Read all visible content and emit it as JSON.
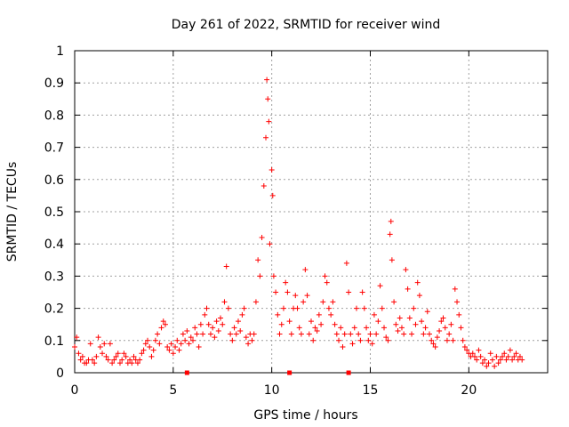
{
  "chart_data": {
    "type": "scatter",
    "title": "Day 261 of 2022, SRMTID for receiver wind",
    "xlabel": "GPS time / hours",
    "ylabel": "SRMTID / TECUs",
    "xlim": [
      0,
      24
    ],
    "ylim": [
      0,
      1
    ],
    "grid": true,
    "marker_color": "#ff0000",
    "x_ticks": [
      0,
      5,
      10,
      15,
      20
    ],
    "x_tick_labels": [
      "0",
      "5",
      "10",
      "15",
      "20"
    ],
    "y_ticks": [
      0,
      0.1,
      0.2,
      0.3,
      0.4,
      0.5,
      0.6,
      0.7,
      0.8,
      0.9,
      1
    ],
    "y_tick_labels": [
      "0",
      "0.1",
      "0.2",
      "0.3",
      "0.4",
      "0.5",
      "0.6",
      "0.7",
      "0.8",
      "0.9",
      "1"
    ],
    "series": [
      {
        "name": "SRMTID",
        "marker": "plus",
        "points": [
          [
            0.0,
            0.08
          ],
          [
            0.1,
            0.11
          ],
          [
            0.2,
            0.06
          ],
          [
            0.3,
            0.04
          ],
          [
            0.4,
            0.05
          ],
          [
            0.5,
            0.03
          ],
          [
            0.6,
            0.03
          ],
          [
            0.7,
            0.04
          ],
          [
            0.8,
            0.09
          ],
          [
            0.9,
            0.04
          ],
          [
            1.0,
            0.03
          ],
          [
            1.1,
            0.05
          ],
          [
            1.2,
            0.11
          ],
          [
            1.3,
            0.08
          ],
          [
            1.4,
            0.06
          ],
          [
            1.5,
            0.09
          ],
          [
            1.6,
            0.05
          ],
          [
            1.7,
            0.04
          ],
          [
            1.8,
            0.09
          ],
          [
            1.9,
            0.03
          ],
          [
            2.0,
            0.04
          ],
          [
            2.1,
            0.05
          ],
          [
            2.2,
            0.06
          ],
          [
            2.3,
            0.03
          ],
          [
            2.4,
            0.04
          ],
          [
            2.5,
            0.06
          ],
          [
            2.6,
            0.05
          ],
          [
            2.7,
            0.03
          ],
          [
            2.8,
            0.04
          ],
          [
            2.9,
            0.03
          ],
          [
            3.0,
            0.05
          ],
          [
            3.1,
            0.04
          ],
          [
            3.2,
            0.03
          ],
          [
            3.3,
            0.04
          ],
          [
            3.4,
            0.06
          ],
          [
            3.5,
            0.07
          ],
          [
            3.6,
            0.09
          ],
          [
            3.7,
            0.1
          ],
          [
            3.8,
            0.08
          ],
          [
            3.9,
            0.05
          ],
          [
            4.0,
            0.07
          ],
          [
            4.1,
            0.1
          ],
          [
            4.2,
            0.12
          ],
          [
            4.3,
            0.09
          ],
          [
            4.4,
            0.14
          ],
          [
            4.5,
            0.16
          ],
          [
            4.6,
            0.15
          ],
          [
            4.7,
            0.08
          ],
          [
            4.8,
            0.07
          ],
          [
            4.9,
            0.09
          ],
          [
            5.0,
            0.06
          ],
          [
            5.1,
            0.08
          ],
          [
            5.2,
            0.1
          ],
          [
            5.3,
            0.07
          ],
          [
            5.4,
            0.09
          ],
          [
            5.5,
            0.12
          ],
          [
            5.6,
            0.1
          ],
          [
            5.7,
            0.13
          ],
          [
            5.8,
            0.09
          ],
          [
            5.9,
            0.11
          ],
          [
            6.0,
            0.1
          ],
          [
            6.1,
            0.14
          ],
          [
            6.2,
            0.12
          ],
          [
            6.3,
            0.08
          ],
          [
            6.4,
            0.15
          ],
          [
            6.5,
            0.12
          ],
          [
            6.6,
            0.18
          ],
          [
            6.7,
            0.2
          ],
          [
            6.8,
            0.15
          ],
          [
            6.9,
            0.12
          ],
          [
            7.0,
            0.14
          ],
          [
            7.1,
            0.11
          ],
          [
            7.2,
            0.16
          ],
          [
            7.3,
            0.13
          ],
          [
            7.4,
            0.17
          ],
          [
            7.5,
            0.15
          ],
          [
            7.6,
            0.22
          ],
          [
            7.7,
            0.33
          ],
          [
            7.8,
            0.2
          ],
          [
            7.9,
            0.12
          ],
          [
            8.0,
            0.1
          ],
          [
            8.1,
            0.14
          ],
          [
            8.2,
            0.12
          ],
          [
            8.3,
            0.16
          ],
          [
            8.4,
            0.13
          ],
          [
            8.5,
            0.18
          ],
          [
            8.6,
            0.2
          ],
          [
            8.7,
            0.11
          ],
          [
            8.8,
            0.09
          ],
          [
            8.9,
            0.12
          ],
          [
            9.0,
            0.1
          ],
          [
            9.1,
            0.12
          ],
          [
            9.2,
            0.22
          ],
          [
            9.3,
            0.35
          ],
          [
            9.4,
            0.3
          ],
          [
            9.5,
            0.42
          ],
          [
            9.6,
            0.58
          ],
          [
            9.7,
            0.73
          ],
          [
            9.75,
            0.91
          ],
          [
            9.8,
            0.85
          ],
          [
            9.85,
            0.78
          ],
          [
            9.9,
            0.4
          ],
          [
            10.0,
            0.63
          ],
          [
            10.05,
            0.55
          ],
          [
            10.1,
            0.3
          ],
          [
            10.2,
            0.25
          ],
          [
            10.3,
            0.18
          ],
          [
            10.4,
            0.12
          ],
          [
            10.5,
            0.15
          ],
          [
            10.6,
            0.2
          ],
          [
            10.7,
            0.28
          ],
          [
            10.8,
            0.25
          ],
          [
            10.9,
            0.16
          ],
          [
            11.0,
            0.12
          ],
          [
            11.1,
            0.2
          ],
          [
            11.2,
            0.24
          ],
          [
            11.3,
            0.2
          ],
          [
            11.4,
            0.14
          ],
          [
            11.5,
            0.12
          ],
          [
            11.6,
            0.22
          ],
          [
            11.7,
            0.32
          ],
          [
            11.8,
            0.24
          ],
          [
            11.9,
            0.12
          ],
          [
            12.0,
            0.16
          ],
          [
            12.1,
            0.1
          ],
          [
            12.2,
            0.14
          ],
          [
            12.3,
            0.13
          ],
          [
            12.4,
            0.18
          ],
          [
            12.5,
            0.15
          ],
          [
            12.6,
            0.22
          ],
          [
            12.7,
            0.3
          ],
          [
            12.8,
            0.28
          ],
          [
            12.9,
            0.2
          ],
          [
            13.0,
            0.18
          ],
          [
            13.1,
            0.22
          ],
          [
            13.2,
            0.15
          ],
          [
            13.3,
            0.12
          ],
          [
            13.4,
            0.1
          ],
          [
            13.5,
            0.14
          ],
          [
            13.6,
            0.08
          ],
          [
            13.7,
            0.12
          ],
          [
            13.8,
            0.34
          ],
          [
            13.9,
            0.25
          ],
          [
            14.0,
            0.12
          ],
          [
            14.1,
            0.09
          ],
          [
            14.2,
            0.14
          ],
          [
            14.3,
            0.2
          ],
          [
            14.4,
            0.12
          ],
          [
            14.5,
            0.1
          ],
          [
            14.6,
            0.25
          ],
          [
            14.7,
            0.2
          ],
          [
            14.8,
            0.14
          ],
          [
            14.9,
            0.1
          ],
          [
            15.0,
            0.12
          ],
          [
            15.1,
            0.09
          ],
          [
            15.2,
            0.18
          ],
          [
            15.3,
            0.12
          ],
          [
            15.4,
            0.16
          ],
          [
            15.5,
            0.27
          ],
          [
            15.6,
            0.2
          ],
          [
            15.7,
            0.14
          ],
          [
            15.8,
            0.11
          ],
          [
            15.9,
            0.1
          ],
          [
            16.0,
            0.43
          ],
          [
            16.05,
            0.47
          ],
          [
            16.1,
            0.35
          ],
          [
            16.2,
            0.22
          ],
          [
            16.3,
            0.15
          ],
          [
            16.4,
            0.13
          ],
          [
            16.5,
            0.17
          ],
          [
            16.6,
            0.14
          ],
          [
            16.7,
            0.12
          ],
          [
            16.8,
            0.32
          ],
          [
            16.9,
            0.26
          ],
          [
            17.0,
            0.17
          ],
          [
            17.1,
            0.12
          ],
          [
            17.2,
            0.2
          ],
          [
            17.3,
            0.15
          ],
          [
            17.4,
            0.28
          ],
          [
            17.5,
            0.24
          ],
          [
            17.6,
            0.16
          ],
          [
            17.7,
            0.12
          ],
          [
            17.8,
            0.14
          ],
          [
            17.9,
            0.19
          ],
          [
            18.0,
            0.12
          ],
          [
            18.1,
            0.1
          ],
          [
            18.2,
            0.09
          ],
          [
            18.3,
            0.08
          ],
          [
            18.4,
            0.11
          ],
          [
            18.5,
            0.13
          ],
          [
            18.6,
            0.16
          ],
          [
            18.7,
            0.17
          ],
          [
            18.8,
            0.14
          ],
          [
            18.9,
            0.1
          ],
          [
            19.0,
            0.12
          ],
          [
            19.1,
            0.15
          ],
          [
            19.2,
            0.1
          ],
          [
            19.3,
            0.26
          ],
          [
            19.4,
            0.22
          ],
          [
            19.5,
            0.18
          ],
          [
            19.6,
            0.14
          ],
          [
            19.7,
            0.1
          ],
          [
            19.8,
            0.08
          ],
          [
            19.9,
            0.07
          ],
          [
            20.0,
            0.06
          ],
          [
            20.1,
            0.05
          ],
          [
            20.2,
            0.06
          ],
          [
            20.3,
            0.05
          ],
          [
            20.4,
            0.04
          ],
          [
            20.5,
            0.07
          ],
          [
            20.6,
            0.05
          ],
          [
            20.7,
            0.03
          ],
          [
            20.8,
            0.04
          ],
          [
            20.9,
            0.02
          ],
          [
            21.0,
            0.03
          ],
          [
            21.1,
            0.06
          ],
          [
            21.2,
            0.04
          ],
          [
            21.3,
            0.02
          ],
          [
            21.4,
            0.05
          ],
          [
            21.5,
            0.03
          ],
          [
            21.6,
            0.04
          ],
          [
            21.7,
            0.05
          ],
          [
            21.8,
            0.06
          ],
          [
            21.9,
            0.04
          ],
          [
            22.0,
            0.05
          ],
          [
            22.1,
            0.07
          ],
          [
            22.2,
            0.04
          ],
          [
            22.3,
            0.05
          ],
          [
            22.4,
            0.06
          ],
          [
            22.5,
            0.04
          ],
          [
            22.6,
            0.05
          ],
          [
            22.7,
            0.04
          ]
        ]
      }
    ],
    "gap_markers_x": [
      5.7,
      10.9,
      13.9
    ]
  }
}
